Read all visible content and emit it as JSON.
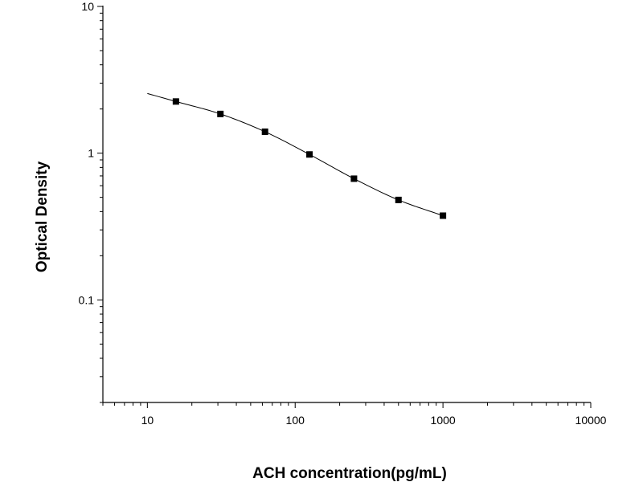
{
  "chart_data": {
    "type": "scatter",
    "title": "",
    "xlabel": "ACH concentration(pg/mL)",
    "ylabel": "Optical Density",
    "x_scale": "log",
    "y_scale": "log",
    "xlim": [
      5,
      10000
    ],
    "ylim": [
      0.02,
      10
    ],
    "x_ticks": [
      {
        "value": 10,
        "label": "10"
      },
      {
        "value": 100,
        "label": "100"
      },
      {
        "value": 1000,
        "label": "1000"
      },
      {
        "value": 10000,
        "label": "10000"
      }
    ],
    "y_ticks": [
      {
        "value": 0.1,
        "label": "0.1"
      },
      {
        "value": 1,
        "label": "1"
      },
      {
        "value": 10,
        "label": "10"
      }
    ],
    "grid": false,
    "legend": "none",
    "series": [
      {
        "marker": "square",
        "color": "#000000",
        "x": [
          15.6,
          31.2,
          62.5,
          125,
          250,
          500,
          1000
        ],
        "y": [
          2.25,
          1.85,
          1.4,
          0.98,
          0.67,
          0.48,
          0.375
        ]
      }
    ],
    "fit_curve": {
      "color": "#000000",
      "x_range": [
        10,
        1000
      ]
    }
  }
}
